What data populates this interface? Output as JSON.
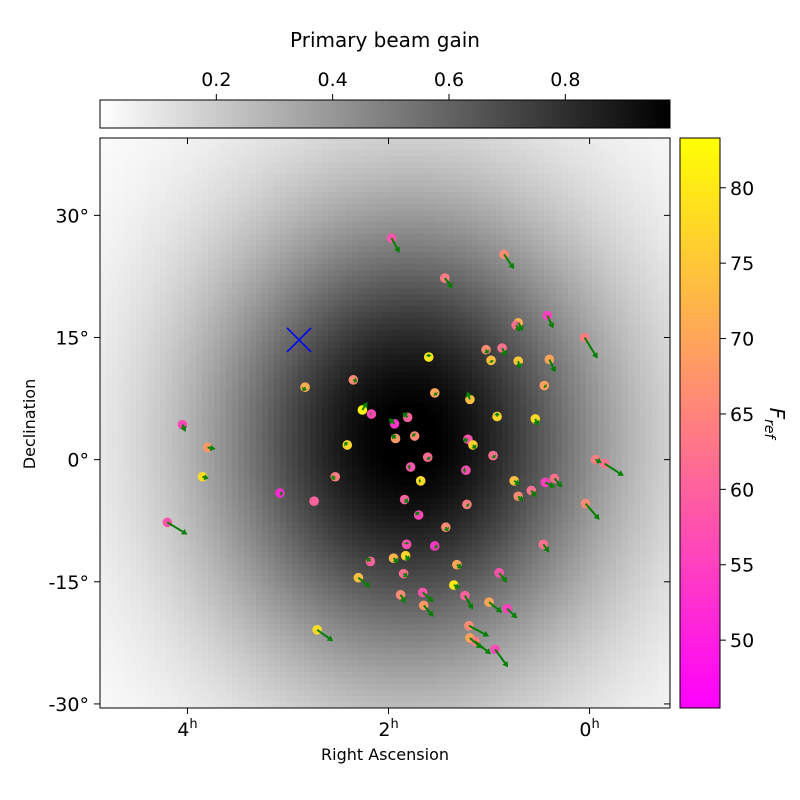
{
  "chart_data": {
    "type": "scatter",
    "xlabel": "Right Ascension",
    "ylabel": "Declination",
    "x_ticks": [
      {
        "value": 4,
        "base": "4",
        "sup": "h"
      },
      {
        "value": 2,
        "base": "2",
        "sup": "h"
      },
      {
        "value": 0,
        "base": "0",
        "sup": "h"
      }
    ],
    "y_ticks": [
      {
        "value": 30,
        "label": "30°"
      },
      {
        "value": 15,
        "label": "15°"
      },
      {
        "value": 0,
        "label": "0°"
      },
      {
        "value": -15,
        "label": "-15°"
      },
      {
        "value": -30,
        "label": "-30°"
      }
    ],
    "xlim_hours": [
      4.87,
      -0.8
    ],
    "ylim_deg": [
      -30.5,
      39.5
    ],
    "beam": {
      "title": "Primary beam gain",
      "ticks": [
        0.2,
        0.4,
        0.6,
        0.8
      ],
      "range": [
        0.0,
        0.98
      ],
      "center_ra": 1.8,
      "center_dec": 2.5,
      "sigma_x_hours": 1.4,
      "sigma_y_deg": 20,
      "cmap": "Greys"
    },
    "colorbar": {
      "label_main": "F",
      "label_sub": "ref",
      "ticks": [
        50,
        55,
        60,
        65,
        70,
        75,
        80
      ],
      "range": [
        45.5,
        83.3
      ],
      "colors": [
        "#ff00ff",
        "#ffff00"
      ]
    },
    "marker": {
      "ra": 2.89,
      "dec": 14.7,
      "color": "#0000ff",
      "symbol": "x"
    },
    "arrow_color": "#008000",
    "points": [
      {
        "ra": 1.97,
        "dec": 27.2,
        "f": 58,
        "dx": -0.08,
        "dy": -1.8
      },
      {
        "ra": 0.85,
        "dec": 25.2,
        "f": 66,
        "dx": -0.1,
        "dy": -1.8
      },
      {
        "ra": 1.44,
        "dec": 22.3,
        "f": 64,
        "dx": -0.08,
        "dy": -1.3
      },
      {
        "ra": 0.71,
        "dec": 16.8,
        "f": 72,
        "dx": -0.05,
        "dy": -1.0
      },
      {
        "ra": 0.42,
        "dec": 17.7,
        "f": 55,
        "dx": -0.06,
        "dy": -1.6
      },
      {
        "ra": 0.05,
        "dec": 15.0,
        "f": 64,
        "dx": -0.13,
        "dy": -2.6
      },
      {
        "ra": 0.73,
        "dec": 16.5,
        "f": 62,
        "dx": -0.04,
        "dy": -0.8
      },
      {
        "ra": 1.03,
        "dec": 13.5,
        "f": 66,
        "dx": -0.02,
        "dy": -0.5
      },
      {
        "ra": 0.87,
        "dec": 13.7,
        "f": 62,
        "dx": -0.04,
        "dy": -1.0
      },
      {
        "ra": 0.98,
        "dec": 12.2,
        "f": 74,
        "dx": -0.01,
        "dy": -0.3
      },
      {
        "ra": 0.71,
        "dec": 12.1,
        "f": 75,
        "dx": -0.02,
        "dy": -1.0
      },
      {
        "ra": 0.4,
        "dec": 12.3,
        "f": 70,
        "dx": -0.06,
        "dy": -1.6
      },
      {
        "ra": 1.6,
        "dec": 12.6,
        "f": 80,
        "dx": 0.0,
        "dy": 0.4
      },
      {
        "ra": 0.45,
        "dec": 9.1,
        "f": 69,
        "dx": -0.02,
        "dy": -0.2
      },
      {
        "ra": 2.83,
        "dec": 8.9,
        "f": 71,
        "dx": 0.02,
        "dy": -0.5
      },
      {
        "ra": 2.35,
        "dec": 9.8,
        "f": 66,
        "dx": -0.04,
        "dy": -0.2
      },
      {
        "ra": 1.54,
        "dec": 8.2,
        "f": 70,
        "dx": -0.02,
        "dy": -0.3
      },
      {
        "ra": 1.19,
        "dec": 7.4,
        "f": 74,
        "dx": 0.03,
        "dy": 1.0
      },
      {
        "ra": 2.26,
        "dec": 6.1,
        "f": 82,
        "dx": -0.05,
        "dy": 1.0
      },
      {
        "ra": 2.17,
        "dec": 5.6,
        "f": 56,
        "dx": 0.01,
        "dy": 0.0
      },
      {
        "ra": 1.81,
        "dec": 5.2,
        "f": 60,
        "dx": 0.05,
        "dy": 0.6
      },
      {
        "ra": 1.94,
        "dec": 4.4,
        "f": 53,
        "dx": 0.06,
        "dy": 0.7
      },
      {
        "ra": 0.92,
        "dec": 5.3,
        "f": 77,
        "dx": 0.0,
        "dy": 0.5
      },
      {
        "ra": 0.54,
        "dec": 5.0,
        "f": 78,
        "dx": -0.03,
        "dy": -0.9
      },
      {
        "ra": 1.74,
        "dec": 2.9,
        "f": 66,
        "dx": 0.02,
        "dy": 0.3
      },
      {
        "ra": 1.93,
        "dec": 2.6,
        "f": 68,
        "dx": 0.04,
        "dy": 0.5
      },
      {
        "ra": 1.21,
        "dec": 2.5,
        "f": 58,
        "dx": 0.05,
        "dy": -0.2
      },
      {
        "ra": 1.16,
        "dec": 1.8,
        "f": 76,
        "dx": -0.03,
        "dy": -0.5
      },
      {
        "ra": 2.41,
        "dec": 1.8,
        "f": 77,
        "dx": 0.03,
        "dy": 0.3
      },
      {
        "ra": 1.61,
        "dec": 0.3,
        "f": 61,
        "dx": -0.02,
        "dy": -0.3
      },
      {
        "ra": 0.96,
        "dec": 0.5,
        "f": 62,
        "dx": -0.02,
        "dy": -0.3
      },
      {
        "ra": 1.78,
        "dec": -0.9,
        "f": 58,
        "dx": 0.03,
        "dy": 0.0
      },
      {
        "ra": 1.23,
        "dec": -1.3,
        "f": 57,
        "dx": 0.03,
        "dy": 0.0
      },
      {
        "ra": 2.53,
        "dec": -2.1,
        "f": 64,
        "dx": 0.04,
        "dy": -0.3
      },
      {
        "ra": 1.68,
        "dec": -2.6,
        "f": 78,
        "dx": 0.02,
        "dy": 0.0
      },
      {
        "ra": 0.75,
        "dec": -2.6,
        "f": 74,
        "dx": -0.06,
        "dy": -0.5
      },
      {
        "ra": 0.44,
        "dec": -2.8,
        "f": 55,
        "dx": -0.1,
        "dy": -0.6
      },
      {
        "ra": 0.35,
        "dec": -2.3,
        "f": 62,
        "dx": -0.08,
        "dy": -1.1
      },
      {
        "ra": -0.06,
        "dec": 0.0,
        "f": 64,
        "dx": -0.06,
        "dy": -0.4
      },
      {
        "ra": -0.15,
        "dec": -0.5,
        "f": 62,
        "dx": -0.19,
        "dy": -1.5
      },
      {
        "ra": 0.58,
        "dec": -3.8,
        "f": 62,
        "dx": -0.05,
        "dy": -0.8
      },
      {
        "ra": 0.71,
        "dec": -4.5,
        "f": 66,
        "dx": -0.05,
        "dy": -0.6
      },
      {
        "ra": 3.08,
        "dec": -4.1,
        "f": 52,
        "dx": -0.03,
        "dy": -0.1
      },
      {
        "ra": 2.74,
        "dec": -5.1,
        "f": 60,
        "dx": 0.0,
        "dy": 0.0
      },
      {
        "ra": 1.84,
        "dec": -4.9,
        "f": 60,
        "dx": -0.04,
        "dy": -0.4
      },
      {
        "ra": 1.22,
        "dec": -5.5,
        "f": 64,
        "dx": -0.02,
        "dy": -0.2
      },
      {
        "ra": 0.04,
        "dec": -5.4,
        "f": 66,
        "dx": -0.14,
        "dy": -2.0
      },
      {
        "ra": 1.7,
        "dec": -6.8,
        "f": 56,
        "dx": 0.03,
        "dy": 0.4
      },
      {
        "ra": 1.43,
        "dec": -8.3,
        "f": 66,
        "dx": -0.02,
        "dy": -0.5
      },
      {
        "ra": 1.82,
        "dec": -10.4,
        "f": 57,
        "dx": 0.0,
        "dy": 0.3
      },
      {
        "ra": 1.54,
        "dec": -10.6,
        "f": 54,
        "dx": -0.03,
        "dy": -0.2
      },
      {
        "ra": 0.46,
        "dec": -10.4,
        "f": 62,
        "dx": -0.06,
        "dy": -1.0
      },
      {
        "ra": 1.95,
        "dec": -12.1,
        "f": 72,
        "dx": -0.05,
        "dy": -0.6
      },
      {
        "ra": 1.83,
        "dec": -11.8,
        "f": 77,
        "dx": -0.04,
        "dy": -0.6
      },
      {
        "ra": 2.18,
        "dec": -12.5,
        "f": 60,
        "dx": 0.04,
        "dy": 0.5
      },
      {
        "ra": 1.32,
        "dec": -12.9,
        "f": 70,
        "dx": -0.05,
        "dy": -0.4
      },
      {
        "ra": 2.3,
        "dec": -14.5,
        "f": 74,
        "dx": -0.12,
        "dy": -1.2
      },
      {
        "ra": 1.85,
        "dec": -14.0,
        "f": 62,
        "dx": -0.04,
        "dy": -0.4
      },
      {
        "ra": 0.9,
        "dec": -13.9,
        "f": 58,
        "dx": -0.08,
        "dy": -1.2
      },
      {
        "ra": 1.35,
        "dec": -15.4,
        "f": 80,
        "dx": -0.06,
        "dy": -0.4
      },
      {
        "ra": 1.66,
        "dec": -16.3,
        "f": 58,
        "dx": -0.11,
        "dy": -1.2
      },
      {
        "ra": 1.88,
        "dec": -16.6,
        "f": 66,
        "dx": -0.05,
        "dy": -1.0
      },
      {
        "ra": 1.24,
        "dec": -16.7,
        "f": 60,
        "dx": -0.08,
        "dy": -1.7
      },
      {
        "ra": 1.0,
        "dec": -17.5,
        "f": 70,
        "dx": -0.13,
        "dy": -1.3
      },
      {
        "ra": 0.82,
        "dec": -18.3,
        "f": 55,
        "dx": -0.1,
        "dy": -1.2
      },
      {
        "ra": 1.65,
        "dec": -17.9,
        "f": 68,
        "dx": -0.1,
        "dy": -1.4
      },
      {
        "ra": 1.2,
        "dec": -20.4,
        "f": 66,
        "dx": -0.2,
        "dy": -1.3
      },
      {
        "ra": 1.19,
        "dec": -21.9,
        "f": 70,
        "dx": -0.12,
        "dy": -1.3
      },
      {
        "ra": 1.14,
        "dec": -22.3,
        "f": 64,
        "dx": -0.16,
        "dy": -1.6
      },
      {
        "ra": 0.94,
        "dec": -23.3,
        "f": 56,
        "dx": -0.13,
        "dy": -2.2
      },
      {
        "ra": 2.71,
        "dec": -20.9,
        "f": 78,
        "dx": -0.16,
        "dy": -1.4
      },
      {
        "ra": 4.05,
        "dec": 4.3,
        "f": 56,
        "dx": -0.03,
        "dy": -0.9
      },
      {
        "ra": 3.8,
        "dec": 1.5,
        "f": 68,
        "dx": -0.08,
        "dy": -0.2
      },
      {
        "ra": 3.85,
        "dec": -2.1,
        "f": 78,
        "dx": -0.06,
        "dy": -0.2
      },
      {
        "ra": 4.2,
        "dec": -7.7,
        "f": 58,
        "dx": -0.2,
        "dy": -1.5
      }
    ]
  }
}
